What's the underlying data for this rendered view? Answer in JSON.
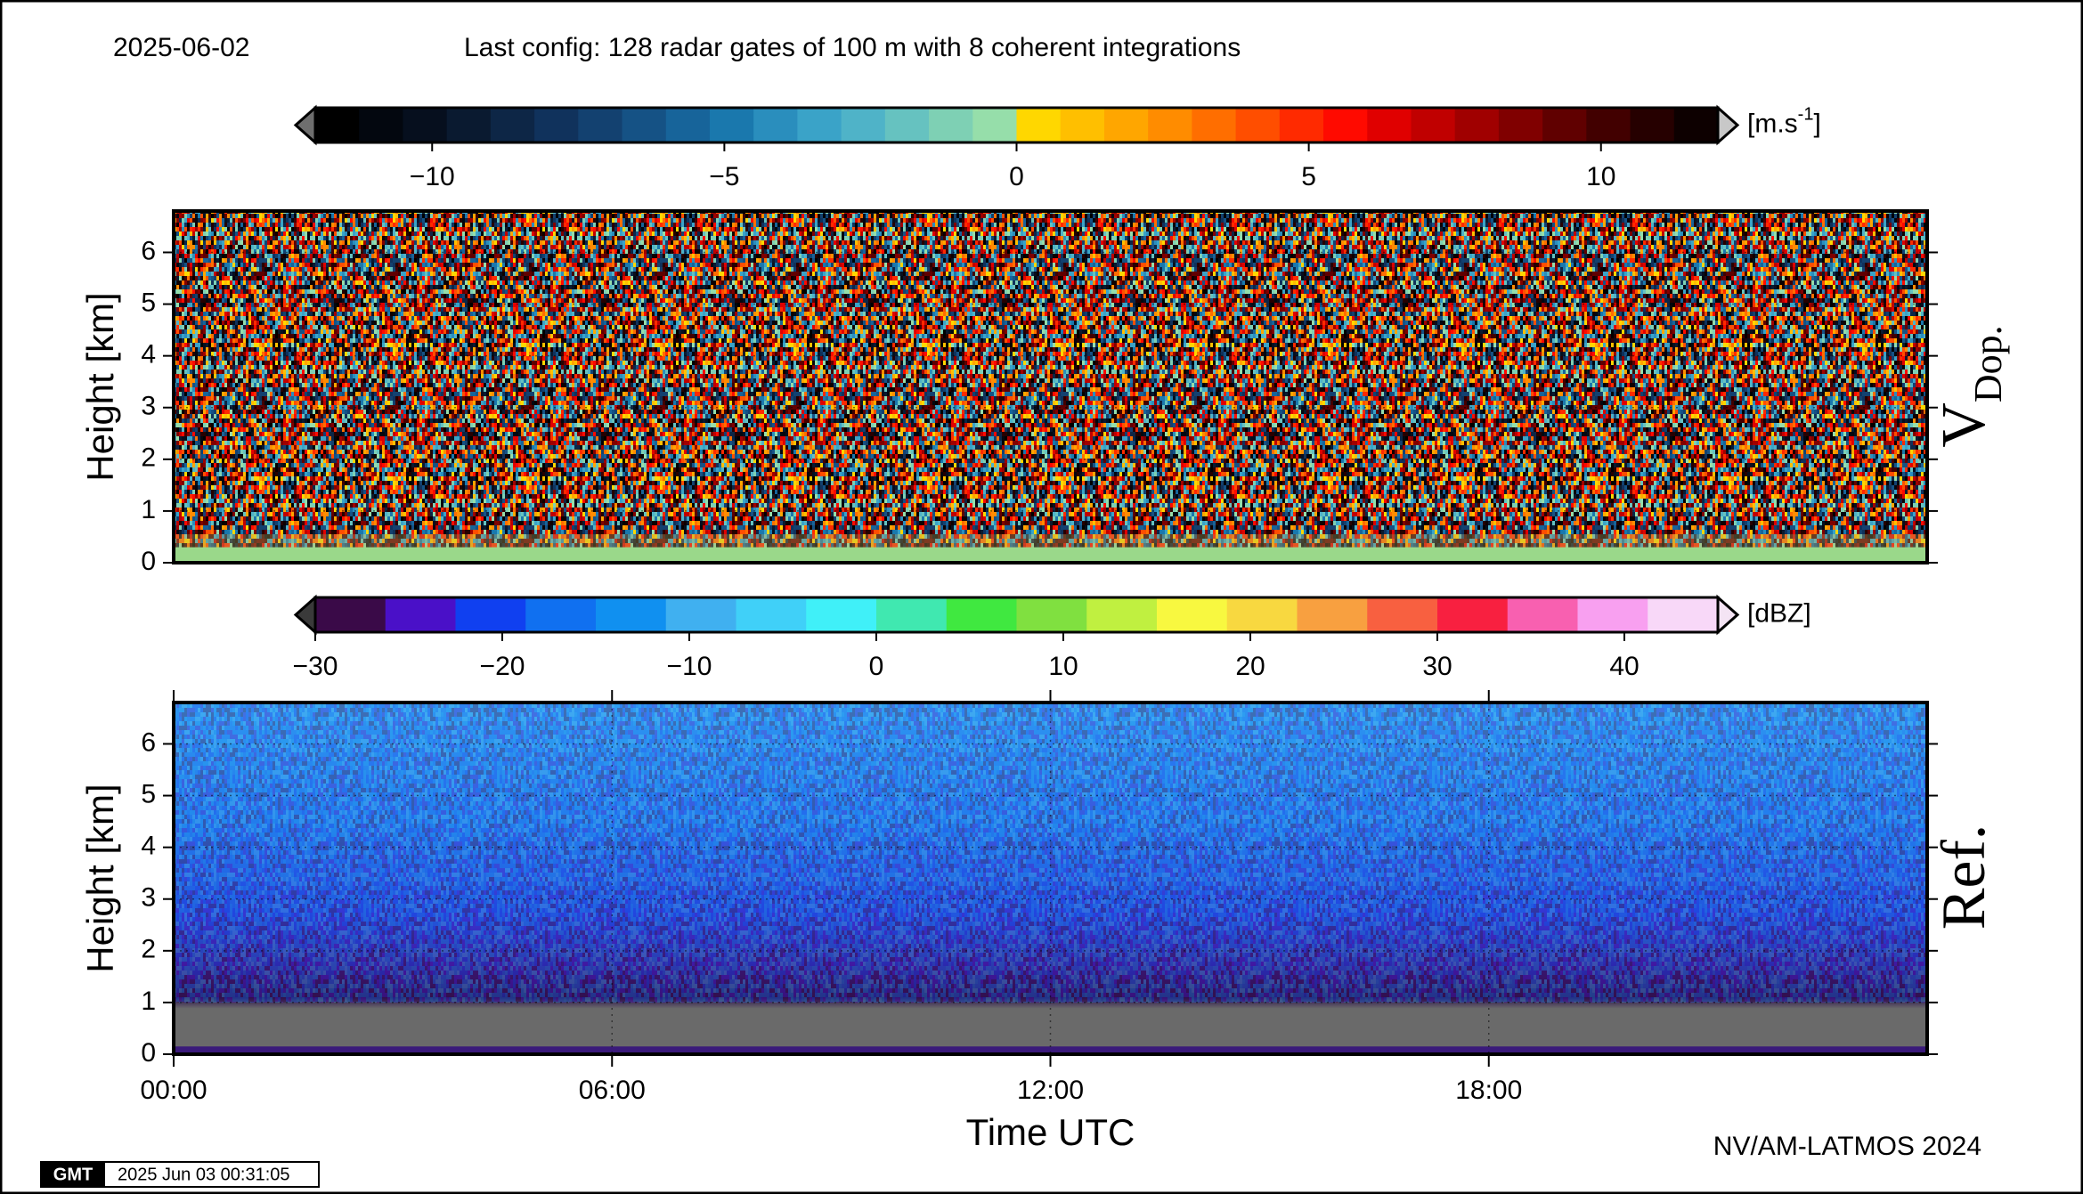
{
  "header": {
    "date": "2025-06-02",
    "config": "Last config: 128 radar gates of 100 m with 8 coherent integrations"
  },
  "footer": {
    "credit": "NV/AM-LATMOS 2024",
    "logo": "GMT",
    "timestamp": "2025 Jun 03 00:31:05"
  },
  "chart_data": [
    {
      "type": "heatmap",
      "colorbar": {
        "unit": [
          "[m.s",
          "-1",
          "]"
        ],
        "lim": [
          -12,
          12
        ],
        "ticks": [
          {
            "value": -10,
            "label": "−10"
          },
          {
            "value": -5,
            "label": "−5"
          },
          0,
          5,
          10
        ],
        "colors": [
          "#000000",
          "#03070f",
          "#060f1e",
          "#0a1a30",
          "#0d2646",
          "#10325c",
          "#134170",
          "#155285",
          "#17649a",
          "#1a78ad",
          "#2a8ebd",
          "#3aa3c8",
          "#4fb3c8",
          "#66c2c0",
          "#7ed0b4",
          "#96deaa",
          "#ffd700",
          "#ffbf00",
          "#ffa600",
          "#ff8c00",
          "#ff6e00",
          "#ff4e00",
          "#ff2a00",
          "#ff0a00",
          "#e00000",
          "#c00000",
          "#a00000",
          "#800000",
          "#600000",
          "#420000",
          "#260000",
          "#0d0000"
        ]
      },
      "side_label": "V",
      "side_label_sub": "Dop.",
      "ylabel": "Height [km]",
      "ylim": [
        0,
        6.8
      ],
      "yticks": [
        0,
        1,
        2,
        3,
        4,
        5,
        6
      ],
      "xlim": [
        0,
        24
      ],
      "grid": true
    },
    {
      "type": "heatmap",
      "colorbar": {
        "unit": [
          "[dBZ]"
        ],
        "lim": [
          -30,
          45
        ],
        "ticks": [
          {
            "value": -30,
            "label": "−30"
          },
          {
            "value": -20,
            "label": "−20"
          },
          {
            "value": -10,
            "label": "−10"
          },
          0,
          10,
          20,
          30,
          40
        ],
        "colors": [
          "#3a0a48",
          "#4a10c8",
          "#1040f0",
          "#1070f0",
          "#1090f0",
          "#40b0f0",
          "#40d0f8",
          "#40f0f8",
          "#40e8b0",
          "#40e840",
          "#80e040",
          "#c0f040",
          "#f8f840",
          "#f8d840",
          "#f8a040",
          "#f86040",
          "#f82040",
          "#f860b0",
          "#f8a0f0",
          "#f8d8f8"
        ]
      },
      "side_label": "Ref.",
      "ylabel": "Height [km]",
      "ylim": [
        0,
        6.8
      ],
      "yticks": [
        0,
        1,
        2,
        3,
        4,
        5,
        6
      ],
      "xlim": [
        0,
        24
      ],
      "xticks": [
        {
          "value": 0,
          "label": "00:00"
        },
        {
          "value": 6,
          "label": "06:00"
        },
        {
          "value": 12,
          "label": "12:00"
        },
        {
          "value": 18,
          "label": "18:00"
        }
      ],
      "xlabel": "Time UTC",
      "grid": true
    }
  ]
}
